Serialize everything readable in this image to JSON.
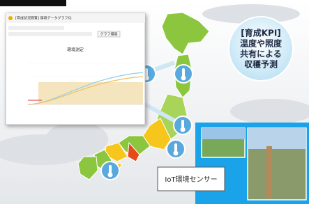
{
  "screen": {
    "title": "[育成状況閲覧] 環境データグラフ化",
    "chart_title": "環境測定",
    "button": "グラフ描画"
  },
  "callout": {
    "lines": [
      "[育成KPI]",
      "温度や照度",
      "共有による",
      "収穫予測"
    ]
  },
  "sensor_label": "IoT環境センサー"
}
